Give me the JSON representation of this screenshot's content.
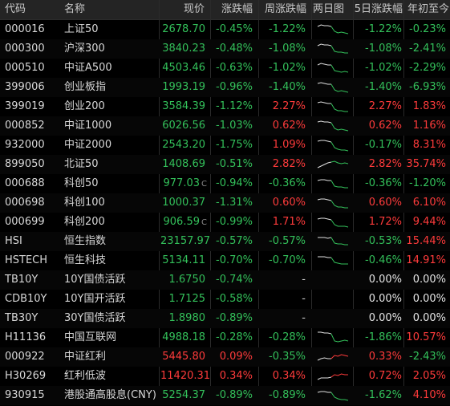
{
  "headers": [
    "代码",
    "名称",
    "现价",
    "涨跌幅",
    "周涨跌幅",
    "两日图",
    "5日涨跌幅",
    "年初至今"
  ],
  "rows": [
    {
      "code": "000016",
      "name": "上证50",
      "price": "2678.70",
      "price_color": "down",
      "c": "",
      "chg": "-0.45%",
      "week": "-1.22%",
      "d5": "-1.22%",
      "ytd": "-0.23%",
      "spark": [
        6,
        4,
        5,
        5,
        6,
        12,
        14,
        13,
        14,
        15
      ]
    },
    {
      "code": "000300",
      "name": "沪深300",
      "price": "3840.23",
      "price_color": "down",
      "c": "",
      "chg": "-0.48%",
      "week": "-1.08%",
      "d5": "-1.08%",
      "ytd": "-2.41%",
      "spark": [
        6,
        4,
        5,
        5,
        6,
        13,
        14,
        14,
        15,
        15
      ]
    },
    {
      "code": "000510",
      "name": "中证A500",
      "price": "4503.46",
      "price_color": "down",
      "c": "",
      "chg": "-0.63%",
      "week": "-1.02%",
      "d5": "-1.02%",
      "ytd": "-2.29%",
      "spark": [
        6,
        4,
        5,
        6,
        6,
        13,
        14,
        15,
        14,
        15
      ]
    },
    {
      "code": "399006",
      "name": "创业板指",
      "price": "1993.19",
      "price_color": "down",
      "c": "",
      "chg": "-0.96%",
      "week": "-1.40%",
      "d5": "-1.40%",
      "ytd": "-6.93%",
      "spark": [
        5,
        4,
        5,
        6,
        6,
        13,
        15,
        14,
        15,
        16
      ]
    },
    {
      "code": "399019",
      "name": "创业200",
      "price": "3584.39",
      "price_color": "down",
      "c": "",
      "chg": "-1.12%",
      "week": "2.27%",
      "d5": "2.27%",
      "ytd": "1.83%",
      "spark": [
        5,
        4,
        5,
        6,
        6,
        13,
        15,
        15,
        16,
        16
      ]
    },
    {
      "code": "000852",
      "name": "中证1000",
      "price": "6026.56",
      "price_color": "down",
      "c": "",
      "chg": "-1.03%",
      "week": "0.62%",
      "d5": "0.62%",
      "ytd": "1.16%",
      "spark": [
        5,
        4,
        5,
        5,
        6,
        13,
        15,
        14,
        15,
        16
      ]
    },
    {
      "code": "932000",
      "name": "中证2000",
      "price": "2543.20",
      "price_color": "down",
      "c": "",
      "chg": "-1.75%",
      "week": "1.09%",
      "d5": "-0.17%",
      "ytd": "8.31%",
      "spark": [
        5,
        4,
        4,
        5,
        6,
        13,
        15,
        16,
        16,
        17
      ]
    },
    {
      "code": "899050",
      "name": "北证50",
      "price": "1408.69",
      "price_color": "down",
      "c": "",
      "chg": "-0.51%",
      "week": "2.82%",
      "d5": "2.82%",
      "ytd": "35.74%",
      "spark": [
        14,
        12,
        10,
        8,
        7,
        6,
        8,
        9,
        8,
        9
      ]
    },
    {
      "code": "000688",
      "name": "科创50",
      "price": "977.03",
      "price_color": "down",
      "c": "C",
      "chg": "-0.94%",
      "week": "-0.36%",
      "d5": "-0.36%",
      "ytd": "-1.20%",
      "spark": [
        6,
        5,
        5,
        6,
        6,
        13,
        14,
        14,
        15,
        15
      ]
    },
    {
      "code": "000698",
      "name": "科创100",
      "price": "1000.37",
      "price_color": "down",
      "c": "",
      "chg": "-1.31%",
      "week": "0.60%",
      "d5": "0.60%",
      "ytd": "6.10%",
      "spark": [
        6,
        5,
        5,
        6,
        7,
        13,
        15,
        15,
        16,
        16
      ]
    },
    {
      "code": "000699",
      "name": "科创200",
      "price": "906.59",
      "price_color": "down",
      "c": "C",
      "chg": "-0.99%",
      "week": "1.71%",
      "d5": "1.72%",
      "ytd": "9.44%",
      "spark": [
        6,
        5,
        5,
        6,
        7,
        13,
        15,
        15,
        15,
        16
      ]
    },
    {
      "code": "HSI",
      "name": "恒生指数",
      "price": "23157.97",
      "price_color": "down",
      "c": "",
      "chg": "-0.57%",
      "week": "-0.57%",
      "d5": "-0.53%",
      "ytd": "15.44%",
      "spark": [
        5,
        5,
        5,
        6,
        5,
        12,
        13,
        13,
        14,
        14
      ]
    },
    {
      "code": "HSTECH",
      "name": "恒生科技",
      "price": "5134.11",
      "price_color": "down",
      "c": "",
      "chg": "-0.70%",
      "week": "-0.70%",
      "d5": "-0.46%",
      "ytd": "14.91%",
      "spark": [
        5,
        5,
        5,
        6,
        6,
        12,
        13,
        14,
        14,
        14
      ]
    },
    {
      "code": "TB10Y",
      "name": "10Y国债活跃",
      "price": "1.6750",
      "price_color": "down",
      "c": "",
      "chg": "-0.74%",
      "week": "-",
      "d5": "0.00%",
      "ytd": "0.00%",
      "spark": []
    },
    {
      "code": "CDB10Y",
      "name": "10Y国开活跃",
      "price": "1.7125",
      "price_color": "down",
      "c": "",
      "chg": "-0.58%",
      "week": "-",
      "d5": "0.00%",
      "ytd": "0.00%",
      "spark": []
    },
    {
      "code": "TB30Y",
      "name": "30Y国债活跃",
      "price": "1.8980",
      "price_color": "down",
      "c": "",
      "chg": "-0.89%",
      "week": "-",
      "d5": "0.00%",
      "ytd": "0.00%",
      "spark": []
    },
    {
      "code": "H11136",
      "name": "中国互联网",
      "price": "4988.18",
      "price_color": "down",
      "c": "",
      "chg": "-0.28%",
      "week": "-0.28%",
      "d5": "-1.86%",
      "ytd": "10.57%",
      "spark": [
        3,
        3,
        4,
        4,
        5,
        14,
        15,
        14,
        13,
        14
      ]
    },
    {
      "code": "000922",
      "name": "中证红利",
      "price": "5445.80",
      "price_color": "up",
      "c": "",
      "chg": "0.09%",
      "week": "-0.35%",
      "d5": "0.33%",
      "ytd": "-2.43%",
      "spark": [
        14,
        12,
        11,
        12,
        12,
        8,
        9,
        7,
        8,
        9
      ]
    },
    {
      "code": "H30269",
      "name": "红利低波",
      "price": "11420.31",
      "price_color": "up",
      "c": "",
      "chg": "0.34%",
      "week": "0.34%",
      "d5": "0.72%",
      "ytd": "2.05%",
      "spark": [
        14,
        12,
        12,
        12,
        11,
        8,
        9,
        7,
        8,
        8
      ]
    },
    {
      "code": "930915",
      "name": "港股通高股息(CNY)",
      "price": "5254.37",
      "price_color": "down",
      "c": "",
      "chg": "-0.89%",
      "week": "-0.89%",
      "d5": "-1.62%",
      "ytd": "4.10%",
      "spark": [
        6,
        5,
        5,
        6,
        6,
        12,
        14,
        15,
        15,
        16
      ]
    }
  ]
}
